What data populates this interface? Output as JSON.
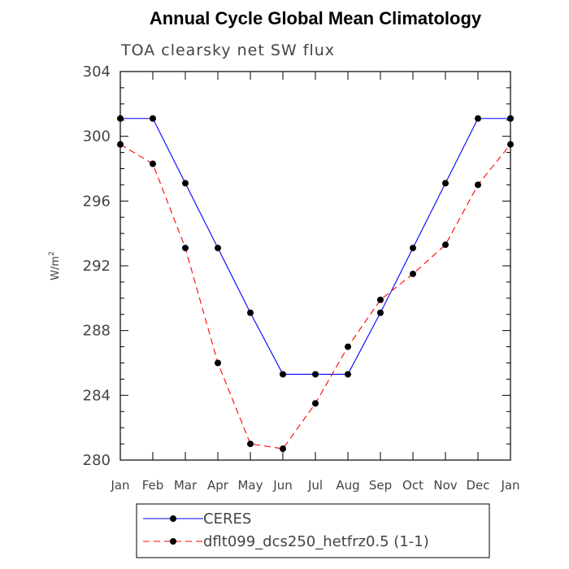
{
  "chart_data": {
    "type": "line",
    "title": "Annual Cycle Global Mean Climatology",
    "subtitle": "TOA clearsky net SW flux",
    "ylabel_base": "W/m",
    "ylabel_sup": "2",
    "ylim": [
      280,
      304
    ],
    "yticks": [
      280,
      284,
      288,
      292,
      296,
      300,
      304
    ],
    "categories": [
      "Jan",
      "Feb",
      "Mar",
      "Apr",
      "May",
      "Jun",
      "Jul",
      "Aug",
      "Sep",
      "Oct",
      "Nov",
      "Dec",
      "Jan"
    ],
    "grid": false,
    "legend_position": "bottom",
    "series": [
      {
        "name": "CERES",
        "color": "#0000ff",
        "dash": "solid",
        "values": [
          301.1,
          301.1,
          297.1,
          293.1,
          289.1,
          285.3,
          285.3,
          285.3,
          289.1,
          293.1,
          297.1,
          301.1,
          301.1
        ]
      },
      {
        "name": "dflt099_dcs250_hetfrz0.5 (1-1)",
        "color": "#ff0000",
        "dash": "dashed",
        "values": [
          299.5,
          298.3,
          293.1,
          286.0,
          281.0,
          280.7,
          283.5,
          287.0,
          289.9,
          291.5,
          293.3,
          297.0,
          299.5
        ]
      }
    ]
  }
}
